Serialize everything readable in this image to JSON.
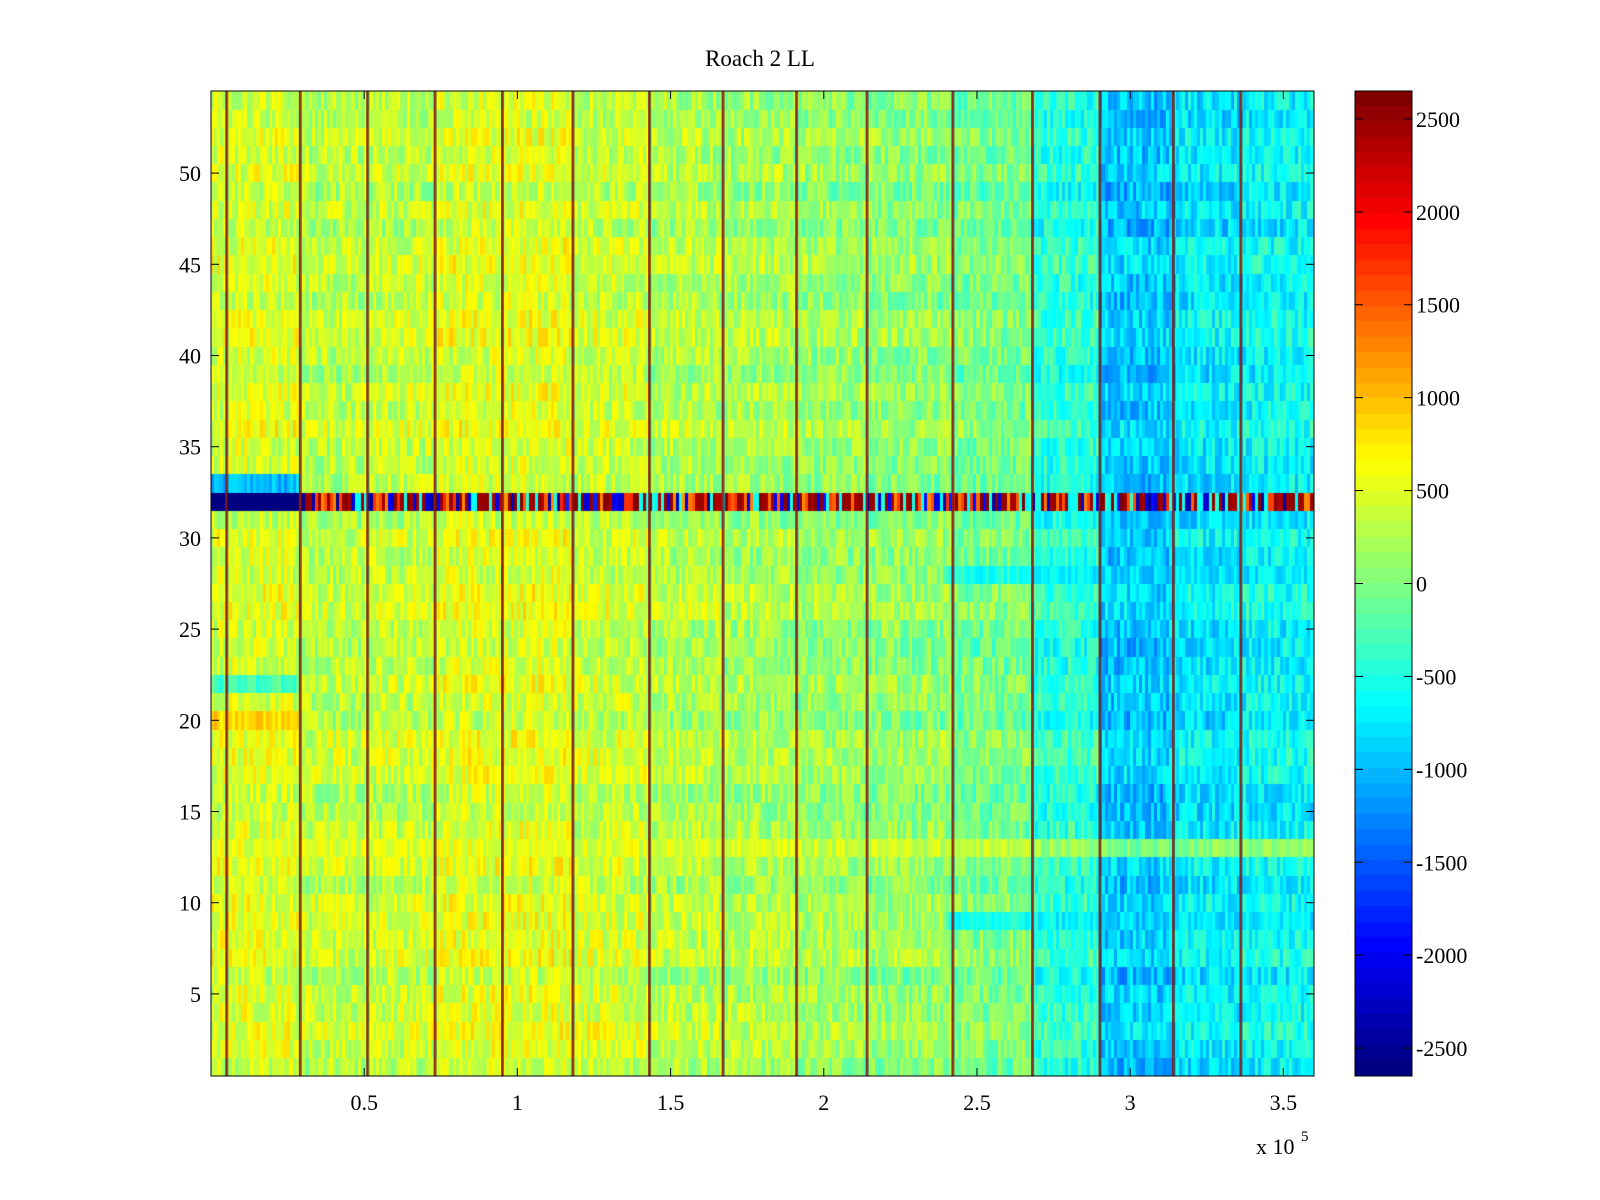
{
  "chart_data": {
    "type": "heatmap",
    "title": "Roach 2 LL",
    "xlabel": "",
    "ylabel": "",
    "x_exponent_label": {
      "base": "x 10",
      "exponent": "5"
    },
    "x_range": [
      0.0,
      3.6
    ],
    "y_range": [
      0.5,
      54.5
    ],
    "rows": 54,
    "x_ticks": [
      {
        "value": 0.5,
        "label": "0.5"
      },
      {
        "value": 1.0,
        "label": "1"
      },
      {
        "value": 1.5,
        "label": "1.5"
      },
      {
        "value": 2.0,
        "label": "2"
      },
      {
        "value": 2.5,
        "label": "2.5"
      },
      {
        "value": 3.0,
        "label": "3"
      },
      {
        "value": 3.5,
        "label": "3.5"
      }
    ],
    "y_ticks": [
      {
        "value": 5,
        "label": "5"
      },
      {
        "value": 10,
        "label": "10"
      },
      {
        "value": 15,
        "label": "15"
      },
      {
        "value": 20,
        "label": "20"
      },
      {
        "value": 25,
        "label": "25"
      },
      {
        "value": 30,
        "label": "30"
      },
      {
        "value": 35,
        "label": "35"
      },
      {
        "value": 40,
        "label": "40"
      },
      {
        "value": 45,
        "label": "45"
      },
      {
        "value": 50,
        "label": "50"
      }
    ],
    "colorbar": {
      "colormap": "jet",
      "range": [
        -2650,
        2650
      ],
      "ticks": [
        {
          "value": 2500,
          "label": "2500"
        },
        {
          "value": 2000,
          "label": "2000"
        },
        {
          "value": 1500,
          "label": "1500"
        },
        {
          "value": 1000,
          "label": "1000"
        },
        {
          "value": 500,
          "label": "500"
        },
        {
          "value": 0,
          "label": "0"
        },
        {
          "value": -500,
          "label": "-500"
        },
        {
          "value": -1000,
          "label": "-1000"
        },
        {
          "value": -1500,
          "label": "-1500"
        },
        {
          "value": -2000,
          "label": "-2000"
        },
        {
          "value": -2500,
          "label": "-2500"
        }
      ]
    },
    "column_segments": [
      {
        "x0": 0.0,
        "x1": 0.29,
        "value": 450
      },
      {
        "x0": 0.29,
        "x1": 0.51,
        "value": 300
      },
      {
        "x0": 0.51,
        "x1": 0.73,
        "value": 350
      },
      {
        "x0": 0.73,
        "x1": 0.95,
        "value": 480
      },
      {
        "x0": 0.95,
        "x1": 1.18,
        "value": 500
      },
      {
        "x0": 1.18,
        "x1": 1.43,
        "value": 380
      },
      {
        "x0": 1.43,
        "x1": 1.67,
        "value": 250
      },
      {
        "x0": 1.67,
        "x1": 1.91,
        "value": 200
      },
      {
        "x0": 1.91,
        "x1": 2.14,
        "value": 120
      },
      {
        "x0": 2.14,
        "x1": 2.42,
        "value": 80
      },
      {
        "x0": 2.42,
        "x1": 2.68,
        "value": -50
      },
      {
        "x0": 2.68,
        "x1": 2.9,
        "value": -450
      },
      {
        "x0": 2.9,
        "x1": 3.14,
        "value": -950
      },
      {
        "x0": 3.14,
        "x1": 3.36,
        "value": -750
      },
      {
        "x0": 3.36,
        "x1": 3.6,
        "value": -650
      }
    ],
    "boundary_lines": [
      0.05,
      0.29,
      0.51,
      0.73,
      0.95,
      1.18,
      1.43,
      1.67,
      1.91,
      2.14,
      2.42,
      2.68,
      2.9,
      3.14,
      3.36
    ],
    "row_offsets": [
      {
        "row": 32,
        "value": 0,
        "note": "strongly alternating extreme values (-2650 to +2650)"
      },
      {
        "row": 33,
        "x1": 0.29,
        "value": -1200
      },
      {
        "row": 13,
        "value": 350
      },
      {
        "row": 28,
        "x0": 2.4,
        "value": -500
      },
      {
        "row": 9,
        "x0": 2.4,
        "value": -500
      },
      {
        "row": 20,
        "x1": 0.29,
        "value": 700
      },
      {
        "row": 22,
        "x1": 0.29,
        "value": -500
      }
    ]
  }
}
